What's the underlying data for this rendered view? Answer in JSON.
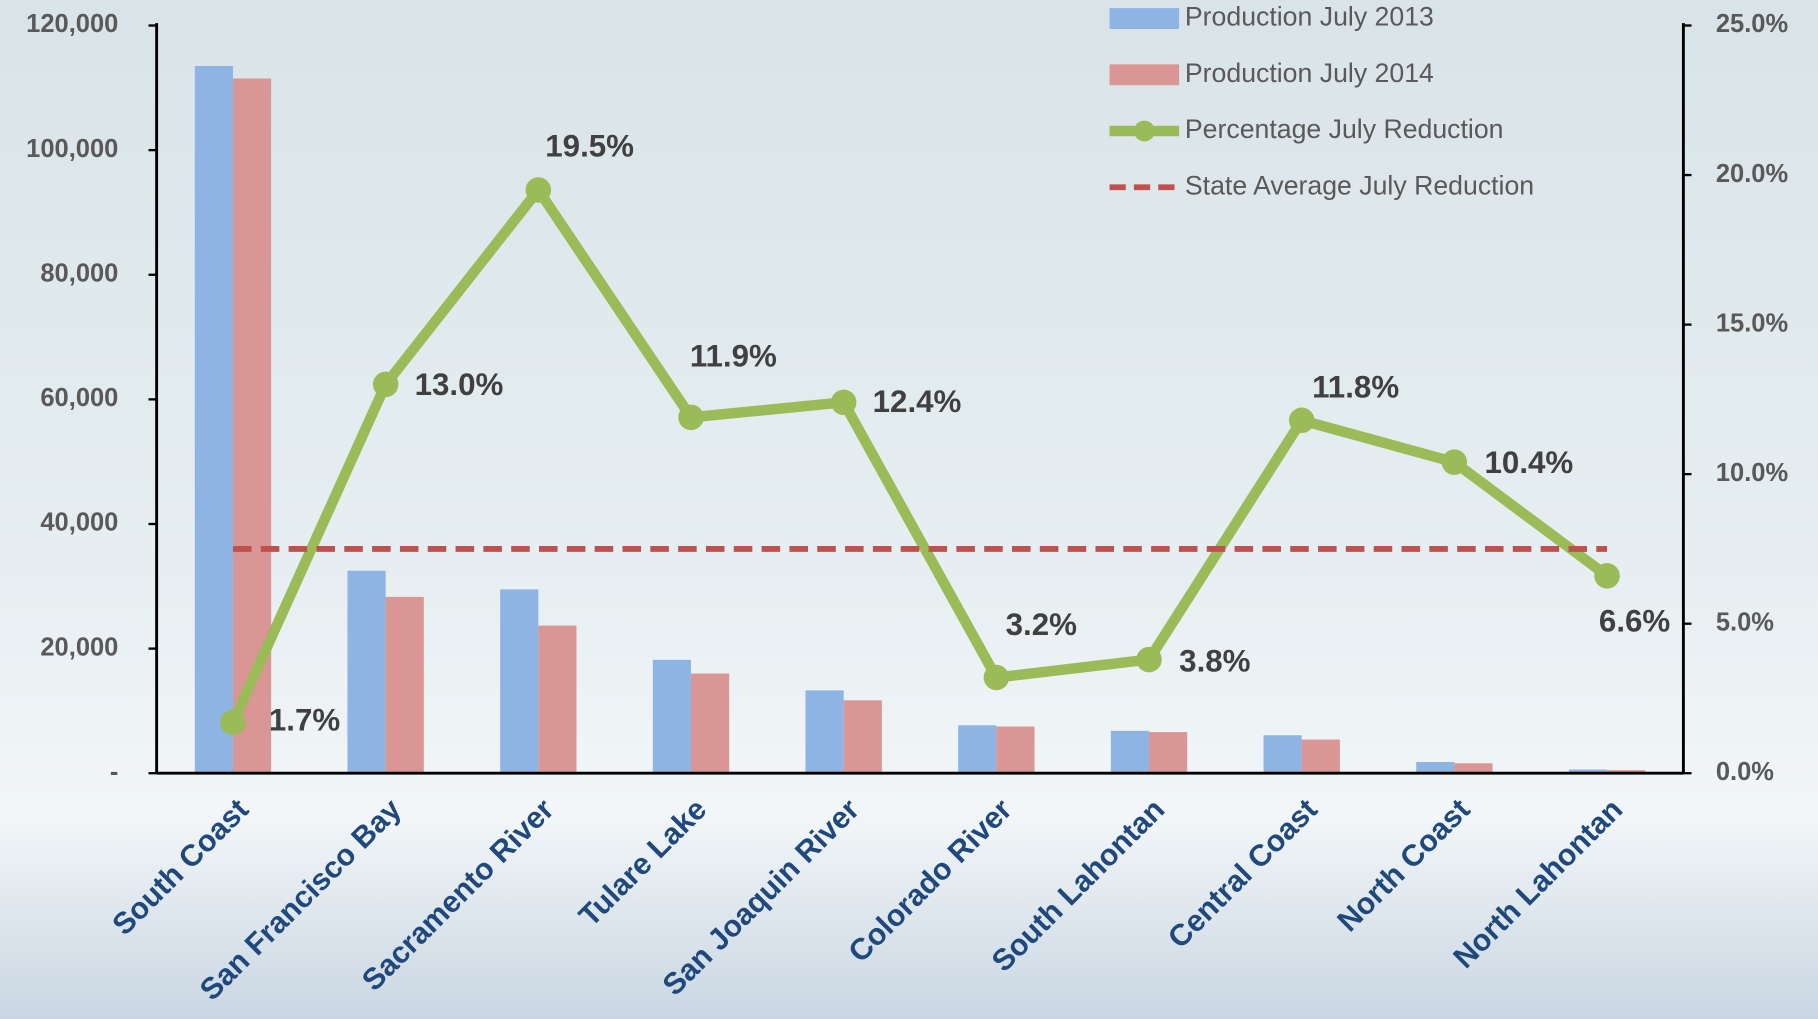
{
  "chart_data": {
    "type": "bar",
    "categories": [
      "South Coast",
      "San Francisco Bay",
      "Sacramento River",
      "Tulare Lake",
      "San Joaquin River",
      "Colorado River",
      "South Lahontan",
      "Central Coast",
      "North Coast",
      "North Lahontan"
    ],
    "series": [
      {
        "name": "Production July 2013",
        "type": "bar",
        "color": "#8eb4e3",
        "values": [
          113500,
          32500,
          29500,
          18200,
          13300,
          7700,
          6800,
          6100,
          1800,
          600
        ]
      },
      {
        "name": "Production July 2014",
        "type": "bar",
        "color": "#d99694",
        "values": [
          111500,
          28300,
          23700,
          16000,
          11700,
          7500,
          6600,
          5400,
          1600,
          500
        ]
      },
      {
        "name": "Percentage July Reduction",
        "type": "line",
        "axis": "y2",
        "color": "#9bbb59",
        "markers": true,
        "values": [
          1.7,
          13.0,
          19.5,
          11.9,
          12.4,
          3.2,
          3.8,
          11.8,
          10.4,
          6.6
        ],
        "value_labels": [
          "1.7%",
          "13.0%",
          "19.5%",
          "11.9%",
          "12.4%",
          "3.2%",
          "3.8%",
          "11.8%",
          "10.4%",
          "6.6%"
        ]
      },
      {
        "name": "State Average July Reduction",
        "type": "line",
        "axis": "y2",
        "color": "#c0504d",
        "dashed": true,
        "values": [
          7.5,
          7.5,
          7.5,
          7.5,
          7.5,
          7.5,
          7.5,
          7.5,
          7.5,
          7.5
        ]
      }
    ],
    "ylim": [
      0,
      120000
    ],
    "yticks": [
      {
        "value": 0,
        "label": "-"
      },
      {
        "value": 20000,
        "label": "20,000"
      },
      {
        "value": 40000,
        "label": "40,000"
      },
      {
        "value": 60000,
        "label": "60,000"
      },
      {
        "value": 80000,
        "label": "80,000"
      },
      {
        "value": 100000,
        "label": "100,000"
      },
      {
        "value": 120000,
        "label": "120,000"
      }
    ],
    "y2lim": [
      0,
      25
    ],
    "y2ticks": [
      {
        "value": 0,
        "label": "0.0%"
      },
      {
        "value": 5,
        "label": "5.0%"
      },
      {
        "value": 10,
        "label": "10.0%"
      },
      {
        "value": 15,
        "label": "15.0%"
      },
      {
        "value": 20,
        "label": "20.0%"
      },
      {
        "value": 25,
        "label": "25.0%"
      }
    ],
    "grid": false
  }
}
